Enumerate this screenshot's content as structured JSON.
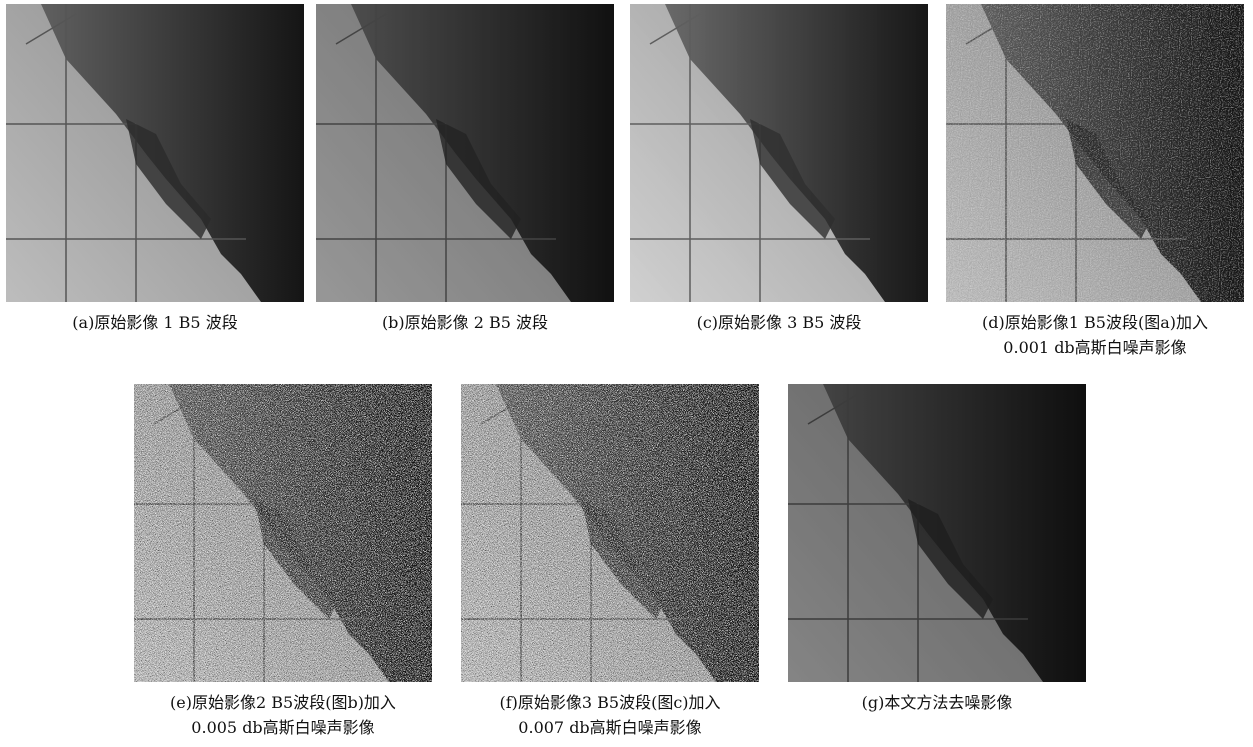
{
  "figures": [
    {
      "caption": [
        "(a)原始影像 1 B5 波段"
      ]
    },
    {
      "caption": [
        "(b)原始影像 2 B5 波段"
      ]
    },
    {
      "caption": [
        "(c)原始影像 3 B5 波段"
      ]
    },
    {
      "caption": [
        "(d)原始影像1 B5波段(图a)加入",
        "0.001 db高斯白噪声影像"
      ]
    },
    {
      "caption": [
        "(e)原始影像2 B5波段(图b)加入",
        "0.005 db高斯白噪声影像"
      ]
    },
    {
      "caption": [
        "(f)原始影像3 B5波段(图c)加入",
        "0.007 db高斯白噪声影像"
      ]
    },
    {
      "caption": [
        "(g)本文方法去噪影像"
      ]
    }
  ]
}
